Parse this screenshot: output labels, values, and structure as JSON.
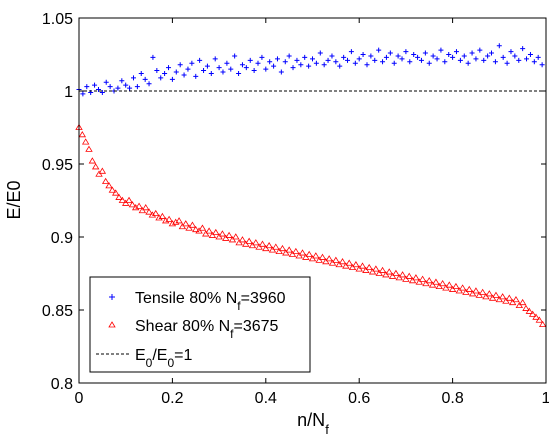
{
  "chart_data": {
    "type": "scatter",
    "xlabel": "n/N",
    "xlabel_sub": "f",
    "ylabel": "E/E0",
    "xlim": [
      0,
      1
    ],
    "ylim": [
      0.8,
      1.05
    ],
    "x_ticks": [
      0,
      0.2,
      0.4,
      0.6,
      0.8,
      1
    ],
    "x_tick_labels": [
      "0",
      "0.2",
      "0.4",
      "0.6",
      "0.8",
      "1"
    ],
    "y_ticks": [
      0.8,
      0.85,
      0.9,
      0.95,
      1,
      1.05
    ],
    "y_tick_labels": [
      "0.8",
      "0.85",
      "0.9",
      "0.95",
      "1",
      "1.05"
    ],
    "grid": false,
    "legend_position": "bottom-left",
    "series": [
      {
        "name": "Tensile 80% N=3960",
        "legend": {
          "pre": "Tensile 80% N",
          "sub": "f",
          "post": "=3960"
        },
        "marker": "plus",
        "color": "#0000ff",
        "x": [
          0.0,
          0.0083,
          0.0167,
          0.025,
          0.0333,
          0.0417,
          0.05,
          0.0583,
          0.0667,
          0.075,
          0.0833,
          0.0917,
          0.1,
          0.1083,
          0.1167,
          0.125,
          0.1333,
          0.1417,
          0.15,
          0.1583,
          0.1667,
          0.175,
          0.1833,
          0.1917,
          0.2,
          0.2083,
          0.2167,
          0.225,
          0.2333,
          0.2417,
          0.25,
          0.2583,
          0.2667,
          0.275,
          0.2833,
          0.2917,
          0.3,
          0.3083,
          0.3167,
          0.325,
          0.3333,
          0.3417,
          0.35,
          0.3583,
          0.3667,
          0.375,
          0.3833,
          0.3917,
          0.4,
          0.4083,
          0.4167,
          0.425,
          0.4333,
          0.4417,
          0.45,
          0.4583,
          0.4667,
          0.475,
          0.4833,
          0.4917,
          0.5,
          0.5083,
          0.5167,
          0.525,
          0.5333,
          0.5417,
          0.55,
          0.5583,
          0.5667,
          0.575,
          0.5833,
          0.5917,
          0.6,
          0.6083,
          0.6167,
          0.625,
          0.6333,
          0.6417,
          0.65,
          0.6583,
          0.6667,
          0.675,
          0.6833,
          0.6917,
          0.7,
          0.7083,
          0.7167,
          0.725,
          0.7333,
          0.7417,
          0.75,
          0.7583,
          0.7667,
          0.775,
          0.7833,
          0.7917,
          0.8,
          0.8083,
          0.8167,
          0.825,
          0.8333,
          0.8417,
          0.85,
          0.8583,
          0.8667,
          0.875,
          0.8833,
          0.8917,
          0.9,
          0.9083,
          0.9167,
          0.925,
          0.9333,
          0.9417,
          0.95,
          0.9583,
          0.9667,
          0.975,
          0.9833,
          0.9917
        ],
        "y": [
          1.001,
          0.998,
          1.003,
          0.999,
          1.004,
          1.001,
          0.999,
          1.006,
          1.003,
          1.0,
          1.002,
          1.007,
          1.004,
          1.002,
          1.009,
          1.003,
          1.012,
          1.008,
          1.005,
          1.023,
          1.014,
          1.009,
          1.012,
          1.016,
          1.008,
          1.013,
          1.018,
          1.011,
          1.015,
          1.019,
          1.01,
          1.021,
          1.014,
          1.017,
          1.012,
          1.022,
          1.016,
          1.013,
          1.019,
          1.015,
          1.024,
          1.012,
          1.018,
          1.016,
          1.021,
          1.014,
          1.019,
          1.023,
          1.015,
          1.02,
          1.017,
          1.022,
          1.013,
          1.02,
          1.024,
          1.016,
          1.021,
          1.018,
          1.023,
          1.017,
          1.022,
          1.019,
          1.026,
          1.018,
          1.021,
          1.024,
          1.02,
          1.017,
          1.023,
          1.021,
          1.027,
          1.019,
          1.022,
          1.025,
          1.018,
          1.024,
          1.021,
          1.028,
          1.02,
          1.023,
          1.026,
          1.019,
          1.024,
          1.022,
          1.027,
          1.02,
          1.025,
          1.023,
          1.021,
          1.026,
          1.019,
          1.024,
          1.022,
          1.028,
          1.02,
          1.025,
          1.023,
          1.027,
          1.021,
          1.024,
          1.019,
          1.026,
          1.022,
          1.028,
          1.021,
          1.024,
          1.026,
          1.02,
          1.031,
          1.023,
          1.019,
          1.027,
          1.024,
          1.021,
          1.029,
          1.022,
          1.025,
          1.02,
          1.023,
          1.018
        ]
      },
      {
        "name": "Shear 80% N=3675",
        "legend": {
          "pre": "Shear 80% N",
          "sub": "f",
          "post": "=3675"
        },
        "marker": "triangle",
        "color": "#ff0000",
        "x": [
          0.0,
          0.0071,
          0.0143,
          0.0214,
          0.0286,
          0.0357,
          0.0429,
          0.05,
          0.0571,
          0.0643,
          0.0714,
          0.0786,
          0.0857,
          0.0929,
          0.1,
          0.1071,
          0.1143,
          0.1214,
          0.1286,
          0.1357,
          0.1429,
          0.15,
          0.1571,
          0.1643,
          0.1714,
          0.1786,
          0.1857,
          0.1929,
          0.2,
          0.2071,
          0.2143,
          0.2214,
          0.2286,
          0.2357,
          0.2429,
          0.25,
          0.2571,
          0.2643,
          0.2714,
          0.2786,
          0.2857,
          0.2929,
          0.3,
          0.3071,
          0.3143,
          0.3214,
          0.3286,
          0.3357,
          0.3429,
          0.35,
          0.3571,
          0.3643,
          0.3714,
          0.3786,
          0.3857,
          0.3929,
          0.4,
          0.4071,
          0.4143,
          0.4214,
          0.4286,
          0.4357,
          0.4429,
          0.45,
          0.4571,
          0.4643,
          0.4714,
          0.4786,
          0.4857,
          0.4929,
          0.5,
          0.5071,
          0.5143,
          0.5214,
          0.5286,
          0.5357,
          0.5429,
          0.55,
          0.5571,
          0.5643,
          0.5714,
          0.5786,
          0.5857,
          0.5929,
          0.6,
          0.6071,
          0.6143,
          0.6214,
          0.6286,
          0.6357,
          0.6429,
          0.65,
          0.6571,
          0.6643,
          0.6714,
          0.6786,
          0.6857,
          0.6929,
          0.7,
          0.7071,
          0.7143,
          0.7214,
          0.7286,
          0.7357,
          0.7429,
          0.75,
          0.7571,
          0.7643,
          0.7714,
          0.7786,
          0.7857,
          0.7929,
          0.8,
          0.8071,
          0.8143,
          0.8214,
          0.8286,
          0.8357,
          0.8429,
          0.85,
          0.8571,
          0.8643,
          0.8714,
          0.8786,
          0.8857,
          0.8929,
          0.9,
          0.9071,
          0.9143,
          0.9214,
          0.9286,
          0.9357,
          0.9429,
          0.95,
          0.9571,
          0.9643,
          0.9714,
          0.9786,
          0.9857,
          0.9929
        ],
        "y": [
          0.975,
          0.97,
          0.965,
          0.96,
          0.952,
          0.948,
          0.943,
          0.945,
          0.938,
          0.935,
          0.932,
          0.93,
          0.927,
          0.925,
          0.923,
          0.925,
          0.922,
          0.92,
          0.921,
          0.918,
          0.92,
          0.917,
          0.915,
          0.916,
          0.913,
          0.914,
          0.911,
          0.912,
          0.909,
          0.91,
          0.911,
          0.907,
          0.909,
          0.906,
          0.908,
          0.905,
          0.904,
          0.906,
          0.902,
          0.904,
          0.901,
          0.903,
          0.9,
          0.902,
          0.899,
          0.901,
          0.898,
          0.9,
          0.896,
          0.898,
          0.895,
          0.897,
          0.894,
          0.896,
          0.893,
          0.895,
          0.892,
          0.894,
          0.891,
          0.893,
          0.89,
          0.892,
          0.889,
          0.891,
          0.888,
          0.89,
          0.887,
          0.889,
          0.886,
          0.888,
          0.885,
          0.887,
          0.884,
          0.886,
          0.883,
          0.885,
          0.882,
          0.884,
          0.881,
          0.883,
          0.88,
          0.882,
          0.879,
          0.881,
          0.878,
          0.88,
          0.877,
          0.879,
          0.876,
          0.878,
          0.875,
          0.877,
          0.874,
          0.876,
          0.873,
          0.875,
          0.872,
          0.874,
          0.871,
          0.873,
          0.87,
          0.872,
          0.869,
          0.871,
          0.868,
          0.87,
          0.867,
          0.869,
          0.866,
          0.868,
          0.865,
          0.867,
          0.864,
          0.866,
          0.863,
          0.865,
          0.862,
          0.864,
          0.861,
          0.863,
          0.86,
          0.862,
          0.859,
          0.861,
          0.858,
          0.86,
          0.857,
          0.859,
          0.856,
          0.858,
          0.855,
          0.857,
          0.853,
          0.855,
          0.851,
          0.849,
          0.847,
          0.845,
          0.843,
          0.84
        ]
      },
      {
        "name": "E0/E0=1",
        "legend": {
          "pre": "E",
          "sub": "0",
          "mid": "/E",
          "sub2": "0",
          "post": "=1"
        },
        "marker": "dashed-line",
        "color": "#000000",
        "x": [
          0,
          1
        ],
        "y": [
          1,
          1
        ]
      }
    ]
  }
}
